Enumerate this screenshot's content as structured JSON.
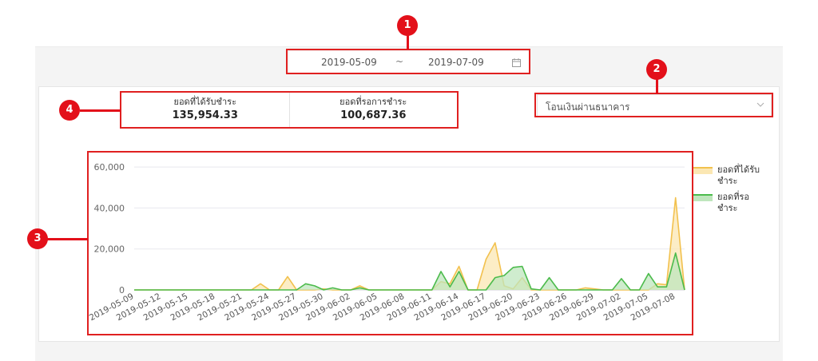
{
  "filters": {
    "date_start": "2019-05-09",
    "date_separator": "~",
    "date_end": "2019-07-09",
    "payment_method": "โอนเงินผ่านธนาคาร"
  },
  "summary": {
    "received_label": "ยอดที่ได้รับชำระ",
    "received_value": "135,954.33",
    "pending_label": "ยอดที่รอการชำระ",
    "pending_value": "100,687.36"
  },
  "callouts": [
    "1",
    "2",
    "3",
    "4"
  ],
  "colors": {
    "received_line": "#f2c14e",
    "received_fill": "#fbe7b3",
    "pending_line": "#4cbb4c",
    "pending_fill": "#bfe6bd",
    "callout": "#e3101a",
    "grid": "#e8e8ee"
  },
  "chart_data": {
    "type": "area",
    "yticks": [
      0,
      20000,
      40000,
      60000
    ],
    "ytick_labels": [
      "0",
      "20,000",
      "40,000",
      "60,000"
    ],
    "ylim": [
      0,
      62000
    ],
    "grid": true,
    "legend_position": "right",
    "x": [
      "2019-05-09",
      "2019-05-10",
      "2019-05-11",
      "2019-05-12",
      "2019-05-13",
      "2019-05-14",
      "2019-05-15",
      "2019-05-16",
      "2019-05-17",
      "2019-05-18",
      "2019-05-19",
      "2019-05-20",
      "2019-05-21",
      "2019-05-22",
      "2019-05-23",
      "2019-05-24",
      "2019-05-25",
      "2019-05-26",
      "2019-05-27",
      "2019-05-28",
      "2019-05-29",
      "2019-05-30",
      "2019-05-31",
      "2019-06-01",
      "2019-06-02",
      "2019-06-03",
      "2019-06-04",
      "2019-06-05",
      "2019-06-06",
      "2019-06-07",
      "2019-06-08",
      "2019-06-09",
      "2019-06-10",
      "2019-06-11",
      "2019-06-12",
      "2019-06-13",
      "2019-06-14",
      "2019-06-15",
      "2019-06-16",
      "2019-06-17",
      "2019-06-18",
      "2019-06-19",
      "2019-06-20",
      "2019-06-21",
      "2019-06-22",
      "2019-06-23",
      "2019-06-24",
      "2019-06-25",
      "2019-06-26",
      "2019-06-27",
      "2019-06-28",
      "2019-06-29",
      "2019-06-30",
      "2019-07-01",
      "2019-07-02",
      "2019-07-03",
      "2019-07-04",
      "2019-07-05",
      "2019-07-06",
      "2019-07-07",
      "2019-07-08",
      "2019-07-09"
    ],
    "xtick_labels": [
      "2019-05-09",
      "2019-05-12",
      "2019-05-15",
      "2019-05-18",
      "2019-05-21",
      "2019-05-24",
      "2019-05-27",
      "2019-05-30",
      "2019-06-02",
      "2019-06-05",
      "2019-06-08",
      "2019-06-11",
      "2019-06-14",
      "2019-06-17",
      "2019-06-20",
      "2019-06-23",
      "2019-06-26",
      "2019-06-29",
      "2019-07-02",
      "2019-07-05",
      "2019-07-08"
    ],
    "series": [
      {
        "name": "ยอดที่ได้รับชำระ",
        "values": [
          0,
          0,
          0,
          0,
          0,
          0,
          0,
          0,
          0,
          0,
          0,
          0,
          0,
          0,
          3000,
          0,
          0,
          6500,
          0,
          0,
          0,
          500,
          0,
          0,
          0,
          2000,
          0,
          0,
          0,
          0,
          0,
          0,
          0,
          0,
          4000,
          3000,
          11500,
          0,
          0,
          15000,
          23000,
          2000,
          500,
          6000,
          0,
          0,
          0,
          0,
          0,
          0,
          1000,
          500,
          0,
          0,
          0,
          0,
          0,
          0,
          3000,
          2500,
          45000,
          0
        ]
      },
      {
        "name": "ยอดที่รอชำระ",
        "values": [
          0,
          0,
          0,
          0,
          0,
          0,
          0,
          0,
          0,
          0,
          0,
          0,
          0,
          0,
          0,
          0,
          0,
          0,
          0,
          3000,
          2000,
          0,
          1000,
          0,
          0,
          1000,
          0,
          0,
          0,
          0,
          0,
          0,
          0,
          0,
          9000,
          1500,
          9000,
          0,
          0,
          0,
          6000,
          7000,
          11000,
          11500,
          500,
          0,
          6000,
          0,
          0,
          0,
          0,
          0,
          0,
          0,
          5500,
          0,
          0,
          8000,
          1500,
          1500,
          18000,
          0
        ]
      }
    ]
  }
}
